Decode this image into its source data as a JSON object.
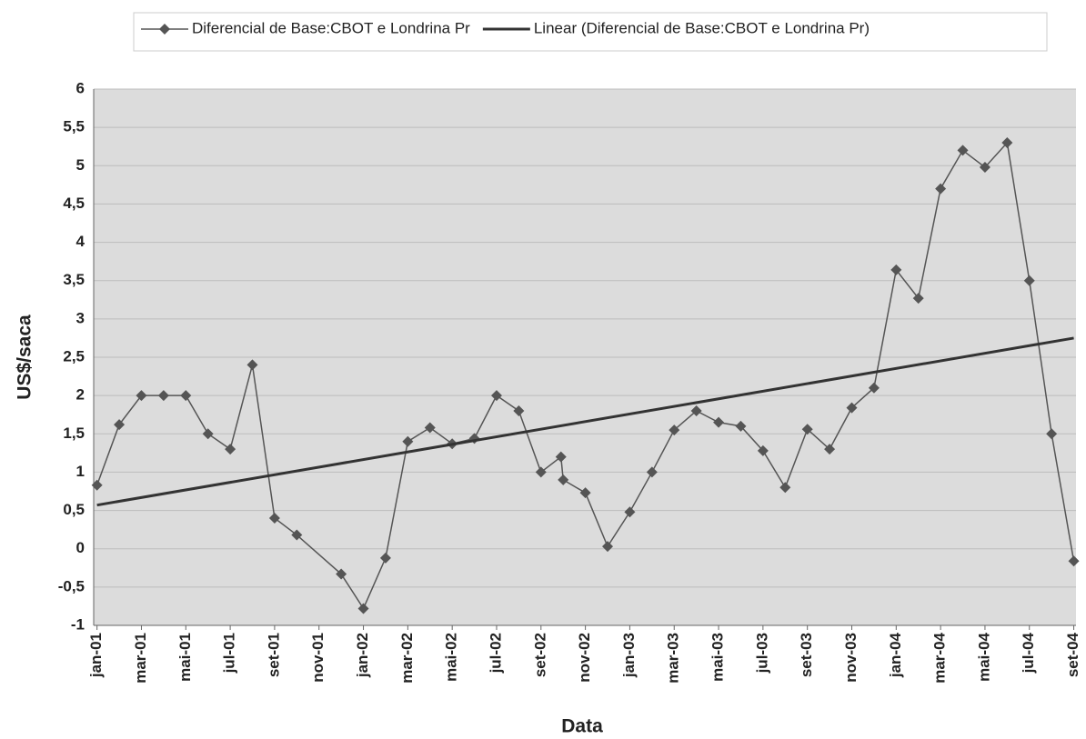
{
  "chart_data": {
    "type": "line",
    "xlabel": "Data",
    "ylabel": "US$/saca",
    "x": [
      0,
      1,
      2,
      3,
      4,
      5,
      6,
      7,
      8,
      9,
      11,
      12,
      13,
      14,
      15,
      16,
      17,
      18,
      19,
      20,
      20.9,
      21,
      22,
      23,
      24,
      25,
      26,
      27,
      28,
      29,
      30,
      31,
      32,
      33,
      34,
      35,
      36,
      37,
      38,
      39,
      40,
      41,
      42,
      43,
      44
    ],
    "series": [
      {
        "name": "Diferencial de Base:CBOT e Londrina Pr",
        "color": "#555555",
        "marker": "diamond",
        "values": [
          0.83,
          1.62,
          2.0,
          2.0,
          2.0,
          1.5,
          1.3,
          2.4,
          0.4,
          0.18,
          -0.33,
          -0.78,
          -0.12,
          1.4,
          1.58,
          1.37,
          1.44,
          2.0,
          1.8,
          1.0,
          1.2,
          0.9,
          0.73,
          0.03,
          0.48,
          1.0,
          1.55,
          1.8,
          1.65,
          1.6,
          1.28,
          0.8,
          1.56,
          1.3,
          1.84,
          2.1,
          3.64,
          3.27,
          4.7,
          5.2,
          4.98,
          5.3,
          3.5,
          1.5,
          -0.16
        ]
      },
      {
        "name": "Linear (Diferencial de Base:CBOT e Londrina Pr)",
        "color": "#333333",
        "marker": "none",
        "x": [
          0,
          44
        ],
        "values": [
          0.57,
          2.75
        ]
      }
    ],
    "xlim": [
      -0.15,
      44.1
    ],
    "xticks": [
      {
        "value": 0,
        "label": "jan-01"
      },
      {
        "value": 2,
        "label": "mar-01"
      },
      {
        "value": 4,
        "label": "mai-01"
      },
      {
        "value": 6,
        "label": "jul-01"
      },
      {
        "value": 8,
        "label": "set-01"
      },
      {
        "value": 10,
        "label": "nov-01"
      },
      {
        "value": 12,
        "label": "jan-02"
      },
      {
        "value": 14,
        "label": "mar-02"
      },
      {
        "value": 16,
        "label": "mai-02"
      },
      {
        "value": 18,
        "label": "jul-02"
      },
      {
        "value": 20,
        "label": "set-02"
      },
      {
        "value": 22,
        "label": "nov-02"
      },
      {
        "value": 24,
        "label": "jan-03"
      },
      {
        "value": 26,
        "label": "mar-03"
      },
      {
        "value": 28,
        "label": "mai-03"
      },
      {
        "value": 30,
        "label": "jul-03"
      },
      {
        "value": 32,
        "label": "set-03"
      },
      {
        "value": 34,
        "label": "nov-03"
      },
      {
        "value": 36,
        "label": "jan-04"
      },
      {
        "value": 38,
        "label": "mar-04"
      },
      {
        "value": 40,
        "label": "mai-04"
      },
      {
        "value": 42,
        "label": "jul-04"
      },
      {
        "value": 44,
        "label": "set-04"
      }
    ],
    "ylim": [
      -1,
      6
    ],
    "yticks": [
      -1,
      {
        "value": -0.5,
        "label": "-0,5"
      },
      0,
      {
        "value": 0.5,
        "label": "0,5"
      },
      1,
      {
        "value": 1.5,
        "label": "1,5"
      },
      2,
      {
        "value": 2.5,
        "label": "2,5"
      },
      3,
      {
        "value": 3.5,
        "label": "3,5"
      },
      4,
      {
        "value": 4.5,
        "label": "4,5"
      },
      5,
      {
        "value": 5.5,
        "label": "5,5"
      },
      6
    ],
    "grid": true,
    "legend": "top"
  }
}
